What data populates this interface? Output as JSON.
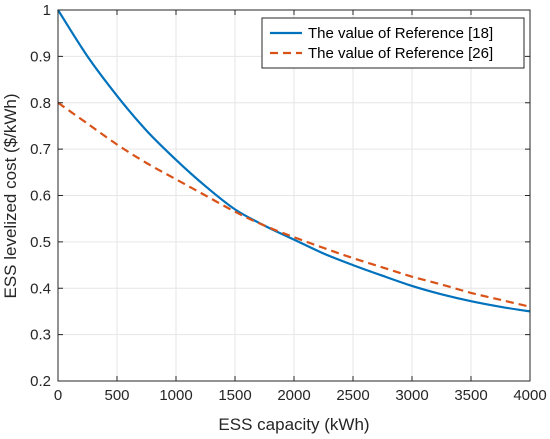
{
  "chart_data": {
    "type": "line",
    "xlabel": "ESS capacity (kWh)",
    "ylabel": "ESS levelized cost ($/kWh)",
    "xlim": [
      0,
      4000
    ],
    "ylim": [
      0.2,
      1.0
    ],
    "x_ticks": [
      0,
      500,
      1000,
      1500,
      2000,
      2500,
      3000,
      3500,
      4000
    ],
    "y_ticks": [
      0.2,
      0.3,
      0.4,
      0.5,
      0.6,
      0.7,
      0.8,
      0.9,
      1
    ],
    "grid": true,
    "legend_position": "top-right",
    "x": [
      0,
      250,
      500,
      750,
      1000,
      1250,
      1500,
      1750,
      2000,
      2250,
      2500,
      2750,
      3000,
      3250,
      3500,
      3750,
      4000
    ],
    "series": [
      {
        "name": "The value of Reference [18]",
        "color": "#0072BD",
        "style": "solid",
        "values": [
          1.0,
          0.9,
          0.815,
          0.74,
          0.677,
          0.62,
          0.57,
          0.535,
          0.505,
          0.475,
          0.45,
          0.427,
          0.405,
          0.387,
          0.372,
          0.36,
          0.35
        ]
      },
      {
        "name": "The value of Reference [26]",
        "color": "#D95319",
        "style": "dashed",
        "values": [
          0.8,
          0.755,
          0.71,
          0.67,
          0.635,
          0.6,
          0.565,
          0.535,
          0.51,
          0.487,
          0.465,
          0.445,
          0.425,
          0.408,
          0.39,
          0.375,
          0.36
        ]
      }
    ]
  }
}
